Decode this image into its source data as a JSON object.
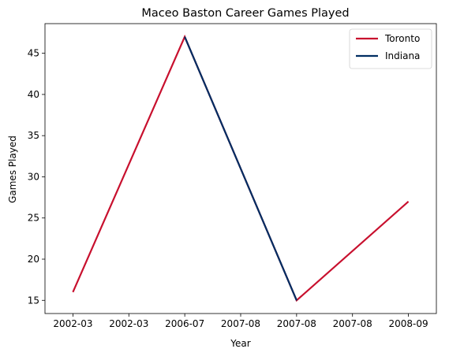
{
  "chart_data": {
    "type": "line",
    "title": "Maceo Baston Career Games Played",
    "xlabel": "Year",
    "ylabel": "Games Played",
    "x_ticks": [
      "2002-03",
      "2002-03",
      "2006-07",
      "2007-08",
      "2007-08",
      "2007-08",
      "2008-09"
    ],
    "y_ticks": [
      15,
      20,
      25,
      30,
      35,
      40,
      45
    ],
    "ylim": [
      13.4,
      48.6
    ],
    "grid": false,
    "legend_position": "top-right",
    "series": [
      {
        "name": "Toronto",
        "color": "#C8102E",
        "points": [
          {
            "x": "2002-03",
            "y": 16
          },
          {
            "x": "2006-07",
            "y": 47
          },
          {
            "x": "2007-08",
            "y": 15
          },
          {
            "x": "2008-09",
            "y": 27
          }
        ]
      },
      {
        "name": "Indiana",
        "color": "#002D62",
        "points": [
          {
            "x": "2006-07",
            "y": 47
          },
          {
            "x": "2007-08",
            "y": 15
          }
        ]
      }
    ]
  }
}
